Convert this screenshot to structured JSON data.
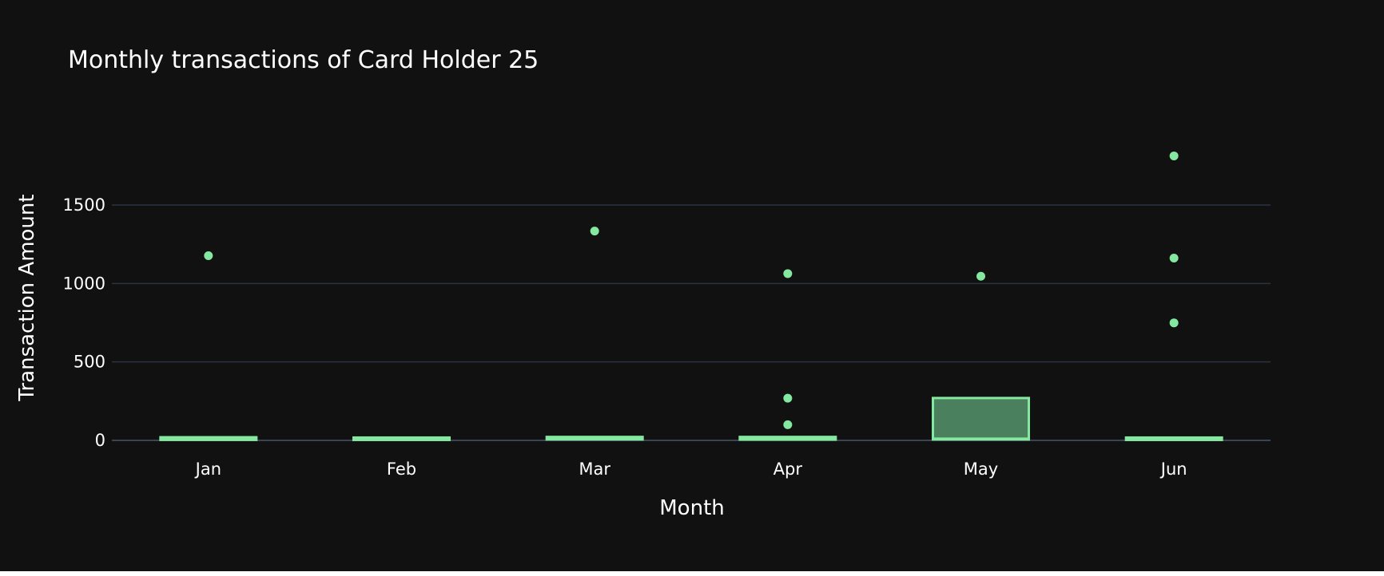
{
  "colors": {
    "background": "#111111",
    "grid": "#283442",
    "zeroline": "#3a4554",
    "box_line": "#84e8a0",
    "box_fill": "#4a805d",
    "text": "#ffffff"
  },
  "chart_data": {
    "type": "box",
    "title": "Monthly transactions of Card Holder 25",
    "xlabel": "Month",
    "ylabel": "Transaction Amount",
    "ylim": [
      -30,
      1950
    ],
    "yticks": [
      0,
      500,
      1000,
      1500
    ],
    "ytick_labels": [
      "0",
      "500",
      "1000",
      "1500"
    ],
    "grid": true,
    "legend": "none",
    "categories": [
      "Jan",
      "Feb",
      "Mar",
      "Apr",
      "May",
      "Jun"
    ],
    "boxes": [
      {
        "month": "Jan",
        "q1": 3,
        "median": 10,
        "q3": 20,
        "lower_fence": 1,
        "upper_fence": 22,
        "outliers": [
          1177
        ]
      },
      {
        "month": "Feb",
        "q1": 3,
        "median": 9,
        "q3": 18,
        "lower_fence": 1,
        "upper_fence": 20,
        "outliers": []
      },
      {
        "month": "Mar",
        "q1": 6,
        "median": 13,
        "q3": 22,
        "lower_fence": 2,
        "upper_fence": 24,
        "outliers": [
          1334
        ]
      },
      {
        "month": "Apr",
        "q1": 5,
        "median": 12,
        "q3": 22,
        "lower_fence": 1,
        "upper_fence": 24,
        "outliers": [
          100,
          269,
          1063
        ]
      },
      {
        "month": "May",
        "q1": 6,
        "median": 11,
        "q3": 270,
        "lower_fence": 1,
        "upper_fence": 275,
        "outliers": [
          1046
        ]
      },
      {
        "month": "Jun",
        "q1": 4,
        "median": 10,
        "q3": 18,
        "lower_fence": 1,
        "upper_fence": 20,
        "outliers": [
          749,
          1162,
          1813
        ]
      }
    ]
  }
}
